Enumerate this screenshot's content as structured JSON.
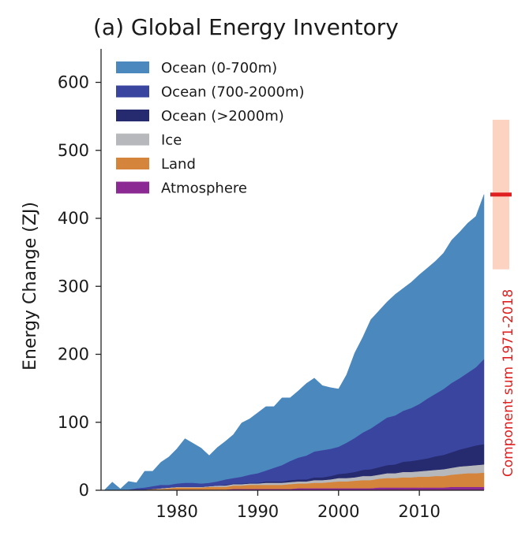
{
  "chart_data": {
    "type": "area",
    "stacked": true,
    "title": "(a) Global Energy Inventory",
    "xlabel": "",
    "ylabel": "Energy Change (ZJ)",
    "xlim": [
      1971,
      2018
    ],
    "ylim": [
      0,
      650
    ],
    "xticks": [
      1980,
      1990,
      2000,
      2010
    ],
    "yticks": [
      0,
      100,
      200,
      300,
      400,
      500,
      600
    ],
    "grid": false,
    "legend_position": "top-left",
    "x": [
      1971,
      1972,
      1973,
      1974,
      1975,
      1976,
      1977,
      1978,
      1979,
      1980,
      1981,
      1982,
      1983,
      1984,
      1985,
      1986,
      1987,
      1988,
      1989,
      1990,
      1991,
      1992,
      1993,
      1994,
      1995,
      1996,
      1997,
      1998,
      1999,
      2000,
      2001,
      2002,
      2003,
      2004,
      2005,
      2006,
      2007,
      2008,
      2009,
      2010,
      2011,
      2012,
      2013,
      2014,
      2015,
      2016,
      2017,
      2018
    ],
    "series": [
      {
        "name": "Atmosphere",
        "color": "#8b2a92",
        "values": [
          0,
          0,
          0,
          0,
          0,
          0,
          0,
          0,
          1,
          1,
          1,
          1,
          1,
          1,
          1,
          1,
          2,
          2,
          2,
          2,
          2,
          2,
          2,
          2,
          3,
          3,
          3,
          3,
          3,
          3,
          3,
          3,
          3,
          3,
          4,
          4,
          4,
          4,
          4,
          4,
          4,
          4,
          4,
          5,
          5,
          5,
          5,
          5
        ]
      },
      {
        "name": "Land",
        "color": "#d4843b",
        "values": [
          0,
          0,
          0,
          0,
          1,
          1,
          2,
          2,
          2,
          3,
          3,
          3,
          3,
          4,
          4,
          4,
          5,
          5,
          6,
          6,
          6,
          6,
          6,
          7,
          7,
          7,
          8,
          8,
          9,
          10,
          10,
          11,
          12,
          12,
          13,
          14,
          14,
          15,
          15,
          16,
          16,
          17,
          17,
          18,
          19,
          20,
          20,
          21
        ]
      },
      {
        "name": "Ice",
        "color": "#b7b8bb",
        "values": [
          0,
          0,
          0,
          0,
          0,
          0,
          0,
          1,
          1,
          1,
          1,
          1,
          1,
          1,
          2,
          2,
          2,
          2,
          2,
          2,
          3,
          3,
          3,
          3,
          3,
          3,
          4,
          4,
          4,
          5,
          5,
          5,
          6,
          6,
          6,
          7,
          7,
          8,
          8,
          8,
          9,
          9,
          10,
          10,
          11,
          11,
          12,
          12
        ]
      },
      {
        "name": "Ocean (>2000m)",
        "color": "#262a6e",
        "values": [
          0,
          0,
          0,
          0,
          0,
          0,
          0,
          0,
          0,
          0,
          0,
          0,
          0,
          0,
          0,
          1,
          1,
          1,
          1,
          1,
          2,
          2,
          2,
          3,
          3,
          3,
          4,
          4,
          5,
          6,
          7,
          8,
          9,
          10,
          11,
          12,
          13,
          15,
          16,
          17,
          18,
          20,
          21,
          23,
          25,
          27,
          29,
          30
        ]
      },
      {
        "name": "Ocean (700-2000m)",
        "color": "#3a45a0",
        "values": [
          0,
          0,
          0,
          1,
          2,
          3,
          4,
          5,
          4,
          5,
          6,
          6,
          5,
          5,
          6,
          8,
          8,
          10,
          12,
          14,
          16,
          20,
          24,
          28,
          32,
          35,
          38,
          40,
          40,
          40,
          45,
          50,
          55,
          60,
          65,
          70,
          72,
          75,
          78,
          82,
          88,
          92,
          97,
          102,
          105,
          110,
          115,
          125
        ]
      },
      {
        "name": "Ocean (0-700m)",
        "color": "#4a88bd",
        "values": [
          0,
          12,
          2,
          12,
          8,
          24,
          22,
          33,
          41,
          51,
          65,
          58,
          52,
          40,
          50,
          56,
          64,
          79,
          82,
          89,
          94,
          90,
          99,
          93,
          98,
          106,
          108,
          95,
          90,
          85,
          100,
          125,
          140,
          160,
          165,
          170,
          178,
          180,
          185,
          190,
          192,
          195,
          200,
          210,
          215,
          220,
          222,
          242
        ]
      }
    ],
    "annotation": {
      "text": "Component sum 1971-2018",
      "central": 435,
      "range": [
        325,
        545
      ],
      "line_color": "#e02020",
      "band_color": "#fcd2c0"
    }
  }
}
